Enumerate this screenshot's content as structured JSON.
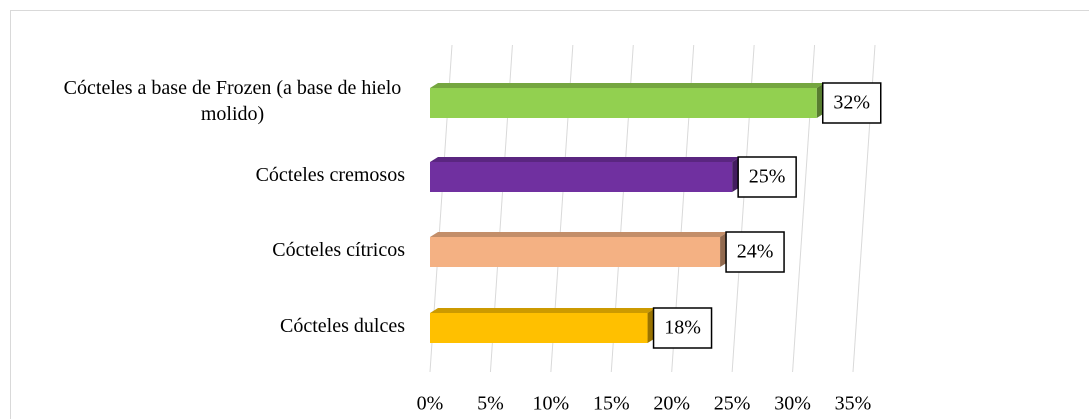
{
  "chart_data": {
    "type": "bar3d_horizontal",
    "categories": [
      "Cócteles a base de Frozen (a base de hielo molido)",
      "Cócteles cremosos",
      "Cócteles cítricos",
      "Cócteles dulces"
    ],
    "values": [
      32,
      25,
      24,
      18
    ],
    "value_labels": [
      "32%",
      "25%",
      "24%",
      "18%"
    ],
    "colors": [
      "#92d050",
      "#7030a0",
      "#f4b183",
      "#ffc000"
    ],
    "xlim": [
      0,
      35
    ],
    "xticks": [
      {
        "value": 0,
        "label": "0%"
      },
      {
        "value": 5,
        "label": "5%"
      },
      {
        "value": 10,
        "label": "10%"
      },
      {
        "value": 15,
        "label": "15%"
      },
      {
        "value": 20,
        "label": "20%"
      },
      {
        "value": 25,
        "label": "25%"
      },
      {
        "value": 30,
        "label": "30%"
      },
      {
        "value": 35,
        "label": "35%"
      }
    ],
    "grid": true
  }
}
